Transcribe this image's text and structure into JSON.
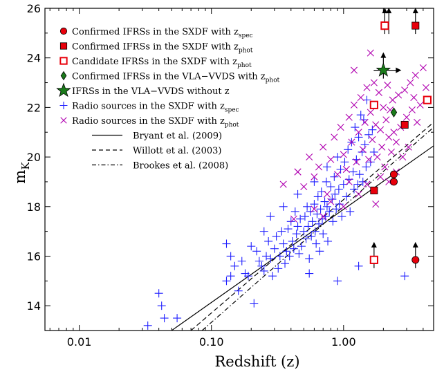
{
  "chart_data": {
    "type": "scatter",
    "xlabel": "Redshift (z)",
    "ylabel_main": "m",
    "ylabel_sub": "K",
    "xscale": "log",
    "xlim": [
      0.0055,
      4.8
    ],
    "ylim": [
      13,
      26
    ],
    "xticks": [
      {
        "value": 0.01,
        "label": "0.01"
      },
      {
        "value": 0.1,
        "label": "0.10"
      },
      {
        "value": 1,
        "label": "1.00"
      }
    ],
    "yticks": [
      {
        "value": 14,
        "label": "14"
      },
      {
        "value": 16,
        "label": "16"
      },
      {
        "value": 18,
        "label": "18"
      },
      {
        "value": 20,
        "label": "20"
      },
      {
        "value": 22,
        "label": "22"
      },
      {
        "value": 24,
        "label": "24"
      },
      {
        "value": 26,
        "label": "26"
      }
    ],
    "legend": [
      {
        "marker": "circle-filled",
        "color": "#e8000b",
        "text": "Confirmed IFRSs in the SXDF with z",
        "sub": "spec"
      },
      {
        "marker": "square-filled",
        "color": "#e8000b",
        "text": "Confirmed IFRSs in the SXDF with z",
        "sub": "phot"
      },
      {
        "marker": "square-open",
        "color": "#e8000b",
        "text": "Candidate IFRSs in the SXDF with z",
        "sub": "phot"
      },
      {
        "marker": "diamond-filled",
        "color": "#1a7a1a",
        "text": "Confirmed IFRSs in the VLA−VVDS with z",
        "sub": "phot"
      },
      {
        "marker": "star-filled",
        "color": "#1a7a1a",
        "text": "IFRSs in the VLA−VVDS without z",
        "sub": ""
      },
      {
        "marker": "plus",
        "color": "#1f1fff",
        "text": "Radio sources in the SXDF with z",
        "sub": "spec"
      },
      {
        "marker": "cross",
        "color": "#b000b0",
        "text": "Radio sources in the SXDF with z",
        "sub": "phot"
      },
      {
        "marker": "line-solid",
        "color": "#000000",
        "text": "Bryant et al. (2009)",
        "sub": ""
      },
      {
        "marker": "line-dashed",
        "color": "#000000",
        "text": "Willott et al. (2003)",
        "sub": ""
      },
      {
        "marker": "line-dashdot",
        "color": "#000000",
        "text": "Brookes et al. (2008)",
        "sub": ""
      }
    ],
    "lines": [
      {
        "name": "Bryant et al. (2009)",
        "style": "solid",
        "points": [
          [
            0.05,
            13.0
          ],
          [
            4.8,
            20.45
          ]
        ]
      },
      {
        "name": "Willott et al. (2003)",
        "style": "dashed",
        "points": [
          [
            0.07,
            13.0
          ],
          [
            4.8,
            21.4
          ]
        ]
      },
      {
        "name": "Brookes et al. (2008)",
        "style": "dashdot",
        "points": [
          [
            0.085,
            13.0
          ],
          [
            4.8,
            21.2
          ]
        ]
      }
    ],
    "series": [
      {
        "name": "Confirmed IFRSs in the SXDF with z_spec",
        "marker": "circle-filled",
        "color": "#e8000b",
        "points": [
          [
            2.4,
            19.3
          ],
          [
            2.4,
            19.0
          ]
        ]
      },
      {
        "name": "Confirmed IFRSs in the SXDF with z_phot",
        "marker": "square-filled",
        "color": "#e8000b",
        "points": [
          [
            1.7,
            18.65
          ],
          [
            2.9,
            21.3
          ]
        ]
      },
      {
        "name": "Candidate IFRSs in the SXDF with z_phot",
        "marker": "square-open",
        "color": "#e8000b",
        "points": [
          [
            1.7,
            22.1
          ],
          [
            4.3,
            22.3
          ]
        ]
      },
      {
        "name": "Confirmed IFRSs in the VLA-VVDS with z_phot",
        "marker": "diamond-filled",
        "color": "#1a7a1a",
        "points": [
          [
            2.4,
            21.8
          ]
        ]
      },
      {
        "name": "IFRSs in the VLA-VVDS without z",
        "marker": "star-filled",
        "color": "#1a7a1a",
        "points": [
          [
            2.0,
            23.5
          ]
        ]
      },
      {
        "name": "Radio sources in the SXDF with z_spec",
        "marker": "plus",
        "color": "#1f1fff",
        "points": [
          [
            0.033,
            13.2
          ],
          [
            0.04,
            14.5
          ],
          [
            0.042,
            14.0
          ],
          [
            0.044,
            13.5
          ],
          [
            0.055,
            13.5
          ],
          [
            0.13,
            16.5
          ],
          [
            0.13,
            15.0
          ],
          [
            0.14,
            15.2
          ],
          [
            0.14,
            16.0
          ],
          [
            0.15,
            15.6
          ],
          [
            0.16,
            14.6
          ],
          [
            0.17,
            15.8
          ],
          [
            0.18,
            15.3
          ],
          [
            0.19,
            15.2
          ],
          [
            0.2,
            16.4
          ],
          [
            0.21,
            14.1
          ],
          [
            0.22,
            16.2
          ],
          [
            0.23,
            15.8
          ],
          [
            0.24,
            15.6
          ],
          [
            0.25,
            15.4
          ],
          [
            0.26,
            16.0
          ],
          [
            0.27,
            16.6
          ],
          [
            0.28,
            15.9
          ],
          [
            0.29,
            15.2
          ],
          [
            0.3,
            16.3
          ],
          [
            0.31,
            16.8
          ],
          [
            0.32,
            15.5
          ],
          [
            0.33,
            16.0
          ],
          [
            0.34,
            17.0
          ],
          [
            0.35,
            16.5
          ],
          [
            0.36,
            15.7
          ],
          [
            0.37,
            16.2
          ],
          [
            0.38,
            17.1
          ],
          [
            0.39,
            16.0
          ],
          [
            0.4,
            17.4
          ],
          [
            0.41,
            16.6
          ],
          [
            0.42,
            16.3
          ],
          [
            0.43,
            17.8
          ],
          [
            0.44,
            16.9
          ],
          [
            0.45,
            17.2
          ],
          [
            0.46,
            16.1
          ],
          [
            0.47,
            17.5
          ],
          [
            0.48,
            16.4
          ],
          [
            0.5,
            17.0
          ],
          [
            0.51,
            17.6
          ],
          [
            0.52,
            16.7
          ],
          [
            0.53,
            18.0
          ],
          [
            0.54,
            17.2
          ],
          [
            0.55,
            15.9
          ],
          [
            0.56,
            17.8
          ],
          [
            0.57,
            16.8
          ],
          [
            0.58,
            17.4
          ],
          [
            0.6,
            18.1
          ],
          [
            0.61,
            17.0
          ],
          [
            0.62,
            16.5
          ],
          [
            0.63,
            17.7
          ],
          [
            0.64,
            18.4
          ],
          [
            0.65,
            17.3
          ],
          [
            0.66,
            16.2
          ],
          [
            0.67,
            17.9
          ],
          [
            0.68,
            18.6
          ],
          [
            0.69,
            17.5
          ],
          [
            0.7,
            16.9
          ],
          [
            0.72,
            18.2
          ],
          [
            0.73,
            17.6
          ],
          [
            0.74,
            19.0
          ],
          [
            0.75,
            18.0
          ],
          [
            0.76,
            16.6
          ],
          [
            0.78,
            17.8
          ],
          [
            0.8,
            18.8
          ],
          [
            0.82,
            18.3
          ],
          [
            0.83,
            17.4
          ],
          [
            0.85,
            19.2
          ],
          [
            0.86,
            18.5
          ],
          [
            0.88,
            17.9
          ],
          [
            0.9,
            20.0
          ],
          [
            0.92,
            18.7
          ],
          [
            0.93,
            18.1
          ],
          [
            0.95,
            19.5
          ],
          [
            0.97,
            17.6
          ],
          [
            1.0,
            18.9
          ],
          [
            1.02,
            19.8
          ],
          [
            1.05,
            18.4
          ],
          [
            1.08,
            20.3
          ],
          [
            1.1,
            19.1
          ],
          [
            1.12,
            17.8
          ],
          [
            1.15,
            20.6
          ],
          [
            1.18,
            19.4
          ],
          [
            1.2,
            18.7
          ],
          [
            1.22,
            21.2
          ],
          [
            1.25,
            19.9
          ],
          [
            1.28,
            18.9
          ],
          [
            1.3,
            20.8
          ],
          [
            1.32,
            19.3
          ],
          [
            1.35,
            21.7
          ],
          [
            1.38,
            20.2
          ],
          [
            1.4,
            19.0
          ],
          [
            1.42,
            21.5
          ],
          [
            1.45,
            20.5
          ],
          [
            1.48,
            19.6
          ],
          [
            1.5,
            22.3
          ],
          [
            1.55,
            20.9
          ],
          [
            1.6,
            19.8
          ],
          [
            1.65,
            21.1
          ],
          [
            1.7,
            20.2
          ],
          [
            0.55,
            15.3
          ],
          [
            0.9,
            15.0
          ],
          [
            2.9,
            15.2
          ],
          [
            1.3,
            15.6
          ],
          [
            0.28,
            17.6
          ],
          [
            0.35,
            18.0
          ],
          [
            0.25,
            17.0
          ],
          [
            0.45,
            18.5
          ],
          [
            0.6,
            19.0
          ],
          [
            0.75,
            19.6
          ]
        ]
      },
      {
        "name": "Radio sources in the SXDF with z_phot",
        "marker": "cross",
        "color": "#b000b0",
        "points": [
          [
            0.35,
            18.9
          ],
          [
            0.45,
            19.4
          ],
          [
            0.5,
            18.8
          ],
          [
            0.55,
            20.0
          ],
          [
            0.6,
            19.2
          ],
          [
            0.65,
            19.6
          ],
          [
            0.7,
            20.4
          ],
          [
            0.75,
            18.5
          ],
          [
            0.8,
            19.9
          ],
          [
            0.85,
            20.8
          ],
          [
            0.9,
            19.3
          ],
          [
            0.95,
            21.2
          ],
          [
            1.0,
            20.1
          ],
          [
            1.05,
            19.5
          ],
          [
            1.1,
            21.6
          ],
          [
            1.15,
            20.6
          ],
          [
            1.2,
            22.1
          ],
          [
            1.25,
            19.8
          ],
          [
            1.3,
            21.0
          ],
          [
            1.35,
            22.4
          ],
          [
            1.4,
            20.3
          ],
          [
            1.45,
            21.4
          ],
          [
            1.5,
            22.8
          ],
          [
            1.55,
            19.9
          ],
          [
            1.6,
            21.8
          ],
          [
            1.65,
            20.7
          ],
          [
            1.7,
            23.0
          ],
          [
            1.75,
            21.3
          ],
          [
            1.8,
            20.0
          ],
          [
            1.85,
            22.6
          ],
          [
            1.9,
            21.1
          ],
          [
            1.95,
            20.4
          ],
          [
            2.0,
            22.0
          ],
          [
            2.05,
            19.6
          ],
          [
            2.1,
            21.5
          ],
          [
            2.15,
            22.9
          ],
          [
            2.2,
            20.8
          ],
          [
            2.25,
            21.9
          ],
          [
            2.3,
            20.2
          ],
          [
            2.35,
            22.3
          ],
          [
            2.4,
            21.0
          ],
          [
            2.5,
            20.6
          ],
          [
            2.6,
            22.5
          ],
          [
            2.7,
            21.2
          ],
          [
            2.8,
            20.0
          ],
          [
            2.9,
            22.7
          ],
          [
            3.0,
            21.6
          ],
          [
            3.1,
            20.4
          ],
          [
            3.2,
            23.0
          ],
          [
            3.3,
            21.9
          ],
          [
            3.4,
            22.4
          ],
          [
            3.5,
            23.3
          ],
          [
            3.6,
            21.4
          ],
          [
            3.8,
            22.1
          ],
          [
            4.0,
            23.6
          ],
          [
            4.2,
            22.8
          ],
          [
            1.5,
            18.9
          ],
          [
            1.3,
            18.5
          ],
          [
            1.1,
            19.0
          ],
          [
            0.8,
            18.2
          ],
          [
            1.75,
            18.1
          ],
          [
            1.9,
            19.2
          ],
          [
            2.2,
            19.0
          ],
          [
            2.5,
            19.4
          ],
          [
            1.0,
            18.0
          ],
          [
            0.7,
            17.6
          ],
          [
            0.6,
            17.9
          ],
          [
            0.45,
            19.4
          ],
          [
            0.42,
            17.5
          ],
          [
            1.2,
            23.5
          ],
          [
            1.6,
            24.2
          ]
        ]
      }
    ],
    "lower_limits": [
      {
        "x": 2.05,
        "y": 25.3
      },
      {
        "x": 2.2,
        "y": 25.3
      },
      {
        "x": 3.5,
        "y": 25.3
      },
      {
        "x": 2.0,
        "y": 23.5
      },
      {
        "x": 1.7,
        "y": 15.85
      },
      {
        "x": 3.5,
        "y": 15.85
      }
    ],
    "limit_points": [
      {
        "marker": "square-open",
        "x": 2.05,
        "y": 25.3
      },
      {
        "marker": "square-filled",
        "x": 3.5,
        "y": 25.3
      },
      {
        "marker": "square-open",
        "x": 1.7,
        "y": 15.85
      },
      {
        "marker": "circle-filled",
        "x": 3.5,
        "y": 15.85
      }
    ],
    "right_arrows": [
      {
        "x": 2.0,
        "y": 23.5
      }
    ]
  }
}
